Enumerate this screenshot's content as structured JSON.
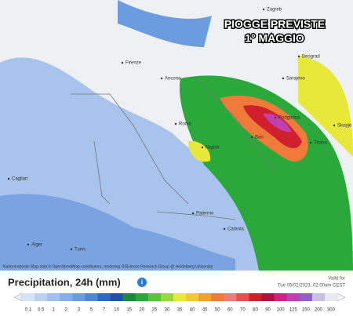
{
  "map": {
    "title": [
      "PIOGGE PREVISTE",
      "1° MAGGIO"
    ],
    "cities": [
      "Zagreb",
      "Beograd",
      "Sarajevo",
      "Podgorica",
      "Tirana",
      "Skopje",
      "Roma",
      "Napoli",
      "Bari",
      "Palermo",
      "Catania",
      "Alger",
      "Tunis",
      "Firenze",
      "Ancona",
      "Cagliari"
    ],
    "attribution": "Kartenmaterial: Map data © OpenStreetMap contributors, rendering GIScience Research Group @ Heidelberg University"
  },
  "panel": {
    "label": "Precipitation, 24h (mm)",
    "valid_label": "Valid for",
    "valid_time": "Tue 05/02/2023, 02:00am CEST",
    "legend": {
      "values": [
        0.1,
        0.5,
        1,
        2,
        3,
        5,
        7,
        10,
        15,
        20,
        25,
        30,
        35,
        40,
        45,
        50,
        60,
        70,
        80,
        90,
        100,
        125,
        150,
        200,
        300
      ],
      "colors": [
        "#d6e2f5",
        "#bcd1f0",
        "#a1c0ec",
        "#86aee6",
        "#6b9ce0",
        "#4f86d6",
        "#2f68c4",
        "#1f4fa8",
        "#1a8a3a",
        "#2aa83a",
        "#58c23a",
        "#98d83a",
        "#e8e83a",
        "#f2c832",
        "#f2a030",
        "#f07a3a",
        "#ef7a7a",
        "#e85050",
        "#d02030",
        "#b01040",
        "#d02080",
        "#c040b0",
        "#9060c8",
        "#c8c0e0",
        "#e8e8f0"
      ]
    }
  }
}
